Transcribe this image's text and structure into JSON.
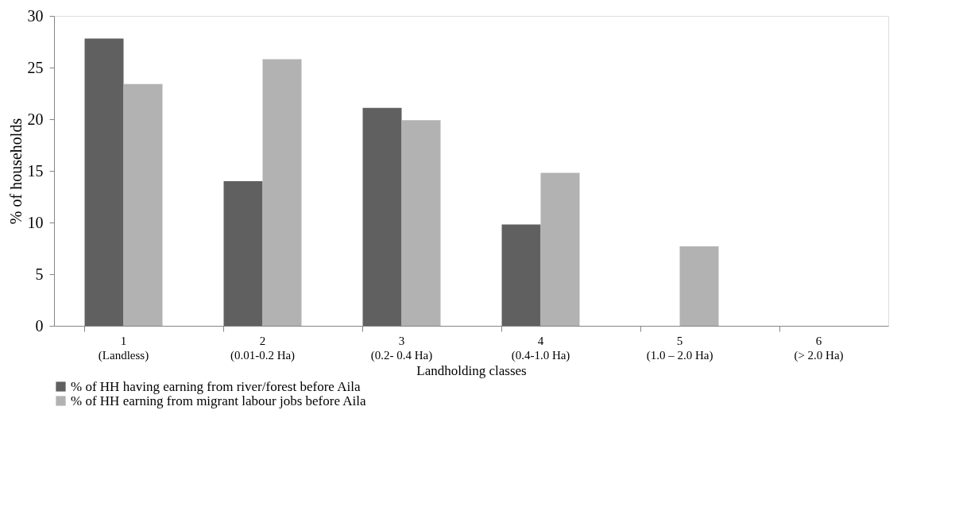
{
  "chart_data": {
    "type": "bar",
    "xlabel": "Landholding classes",
    "ylabel": "% of households",
    "categories": [
      "1\n(Landless)",
      "2\n(0.01-0.2 Ha)",
      "3\n(0.2- 0.4 Ha)",
      "4\n(0.4-1.0 Ha)",
      "5\n(1.0 – 2.0 Ha)",
      "6\n(> 2.0 Ha)"
    ],
    "series": [
      {
        "name": "% of HH having earning from river/forest before Aila",
        "color": "#606060",
        "values": [
          27.8,
          14.0,
          21.1,
          9.8,
          0,
          0
        ]
      },
      {
        "name": "% of HH earning from migrant labour jobs before Aila",
        "color": "#b2b2b2",
        "values": [
          23.4,
          25.8,
          19.9,
          14.8,
          7.7,
          0
        ]
      }
    ],
    "ylim": [
      0,
      30
    ],
    "yticks": [
      0,
      5,
      10,
      15,
      20,
      25,
      30
    ],
    "grid": false,
    "legend": "bottom"
  }
}
